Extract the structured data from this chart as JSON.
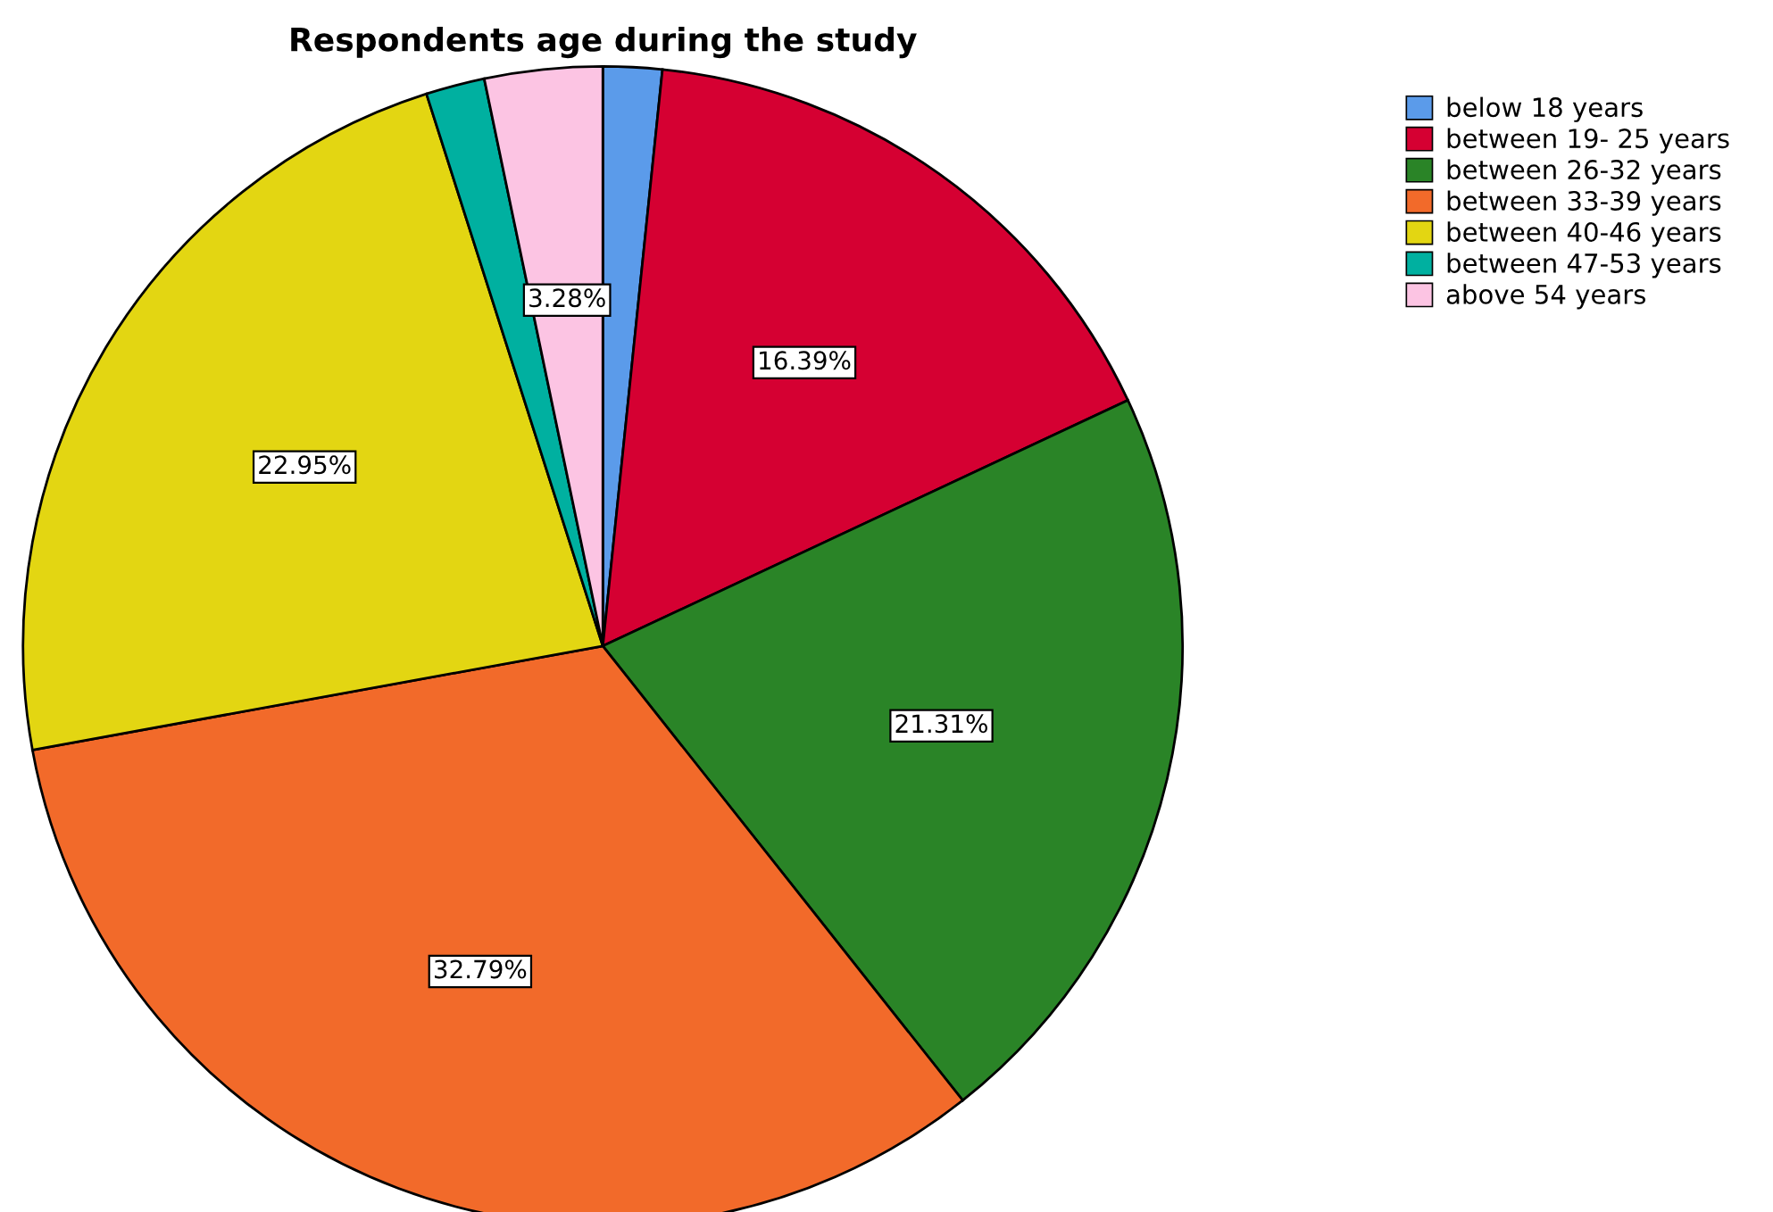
{
  "chart_data": {
    "type": "pie",
    "title": "Respondents age during the study",
    "categories": [
      "below 18 years",
      "between 19- 25 years",
      "between 26-32 years",
      "between 33-39 years",
      "between 40-46 years",
      "between 47-53 years",
      "above 54 years"
    ],
    "values": [
      1.64,
      16.39,
      21.31,
      32.79,
      22.95,
      1.64,
      3.28
    ],
    "value_labels": [
      null,
      "16.39%",
      "21.31%",
      "32.79%",
      "22.95%",
      null,
      "3.28%"
    ],
    "colors": [
      "#5b9bea",
      "#d50032",
      "#2a8427",
      "#f26a2a",
      "#e3d612",
      "#00b0a0",
      "#fcc4e3"
    ],
    "legend": "top right"
  }
}
